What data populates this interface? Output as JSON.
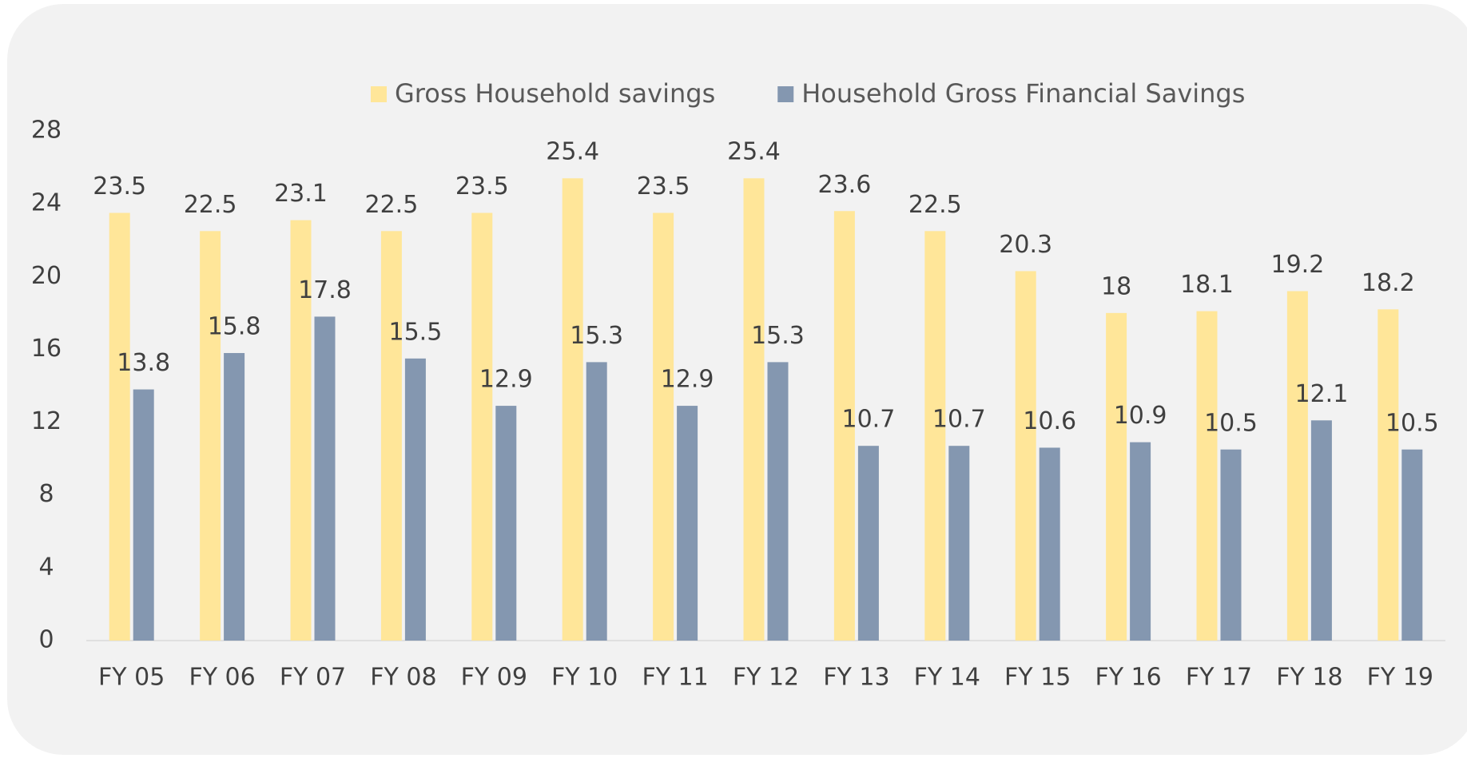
{
  "chart_data": {
    "type": "bar",
    "categories": [
      "FY 05",
      "FY 06",
      "FY 07",
      "FY 08",
      "FY 09",
      "FY 10",
      "FY 11",
      "FY 12",
      "FY 13",
      "FY 14",
      "FY 15",
      "FY 16",
      "FY 17",
      "FY 18",
      "FY 19"
    ],
    "series": [
      {
        "name": "Gross Household savings",
        "color": "#ffe699",
        "values": [
          23.5,
          22.5,
          23.1,
          22.5,
          23.5,
          25.4,
          23.5,
          25.4,
          23.6,
          22.5,
          20.3,
          18,
          18.1,
          19.2,
          18.2
        ]
      },
      {
        "name": "Household Gross Financial Savings",
        "color": "#8497b0",
        "values": [
          13.8,
          15.8,
          17.8,
          15.5,
          12.9,
          15.3,
          12.9,
          15.3,
          10.7,
          10.7,
          10.6,
          10.9,
          10.5,
          12.1,
          10.5
        ]
      }
    ],
    "ylim": [
      0,
      28
    ],
    "yticks": [
      0,
      4,
      8,
      12,
      16,
      20,
      24,
      28
    ],
    "legend": "top",
    "grid": false
  }
}
